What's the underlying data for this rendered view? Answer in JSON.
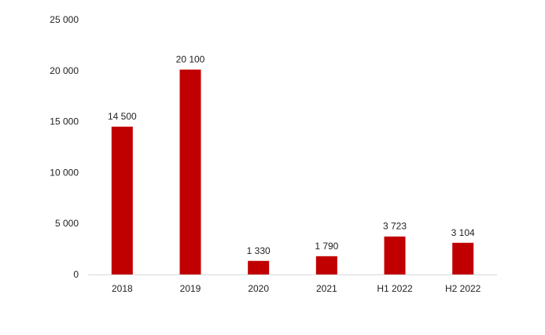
{
  "chart_data": {
    "type": "bar",
    "categories": [
      "2018",
      "2019",
      "2020",
      "2021",
      "H1 2022",
      "H2 2022"
    ],
    "values": [
      14500,
      20100,
      1330,
      1790,
      3723,
      3104
    ],
    "value_labels": [
      "14 500",
      "20 100",
      "1 330",
      "1 790",
      "3 723",
      "3 104"
    ],
    "y_ticks": [
      0,
      5000,
      10000,
      15000,
      20000,
      25000
    ],
    "y_tick_labels": [
      "0",
      "5 000",
      "10 000",
      "15 000",
      "20 000",
      "25 000"
    ],
    "ylim": [
      0,
      25000
    ],
    "grid": false,
    "legend": false,
    "bar_color": "#C00000",
    "axis_color": "#D9D9D9"
  }
}
